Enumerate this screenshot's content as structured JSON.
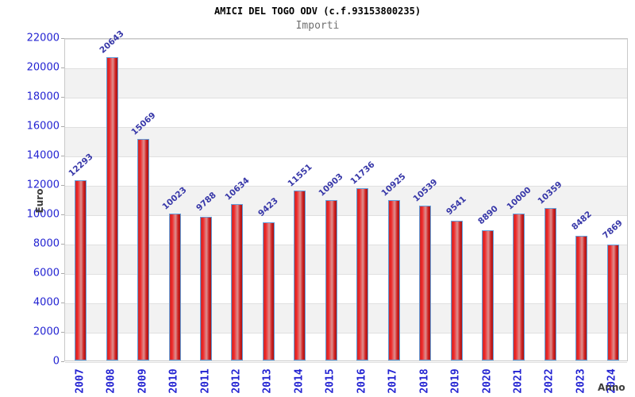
{
  "header": {
    "title": "AMICI DEL TOGO ODV (c.f.93153800235)",
    "subtitle": "Importi"
  },
  "chart_data": {
    "type": "bar",
    "title": "AMICI DEL TOGO ODV (c.f.93153800235)",
    "subtitle": "Importi",
    "xlabel": "Anno",
    "ylabel": "Euro",
    "categories": [
      "2007",
      "2008",
      "2009",
      "2010",
      "2011",
      "2012",
      "2013",
      "2014",
      "2015",
      "2016",
      "2017",
      "2018",
      "2019",
      "2020",
      "2021",
      "2022",
      "2023",
      "2024"
    ],
    "values": [
      12293,
      20643,
      15069,
      10023,
      9788,
      10634,
      9423,
      11551,
      10903,
      11736,
      10925,
      10539,
      9541,
      8890,
      10000,
      10359,
      8482,
      7869
    ],
    "ylim": [
      0,
      22000
    ],
    "yticks": [
      0,
      2000,
      4000,
      6000,
      8000,
      10000,
      12000,
      14000,
      16000,
      18000,
      20000,
      22000
    ],
    "grid": true,
    "legend": "none",
    "band_alternating": true,
    "colors": {
      "bar_border": "#62a0dd",
      "bar_gradient": [
        "#c62f2f",
        "#f02323",
        "#dd8f8f",
        "#d02020",
        "#a31515"
      ],
      "bar_gradient_stops": [
        0,
        20,
        55,
        80,
        100
      ],
      "value_label": "#3737a8",
      "tick_label": "#2323d2",
      "axis_title": "#3c3c3c",
      "subtitle_text": "#707070",
      "band_gray": "#f2f2f2",
      "gridline": "#e0e0e0",
      "plot_border": "#c9c9c9"
    }
  }
}
